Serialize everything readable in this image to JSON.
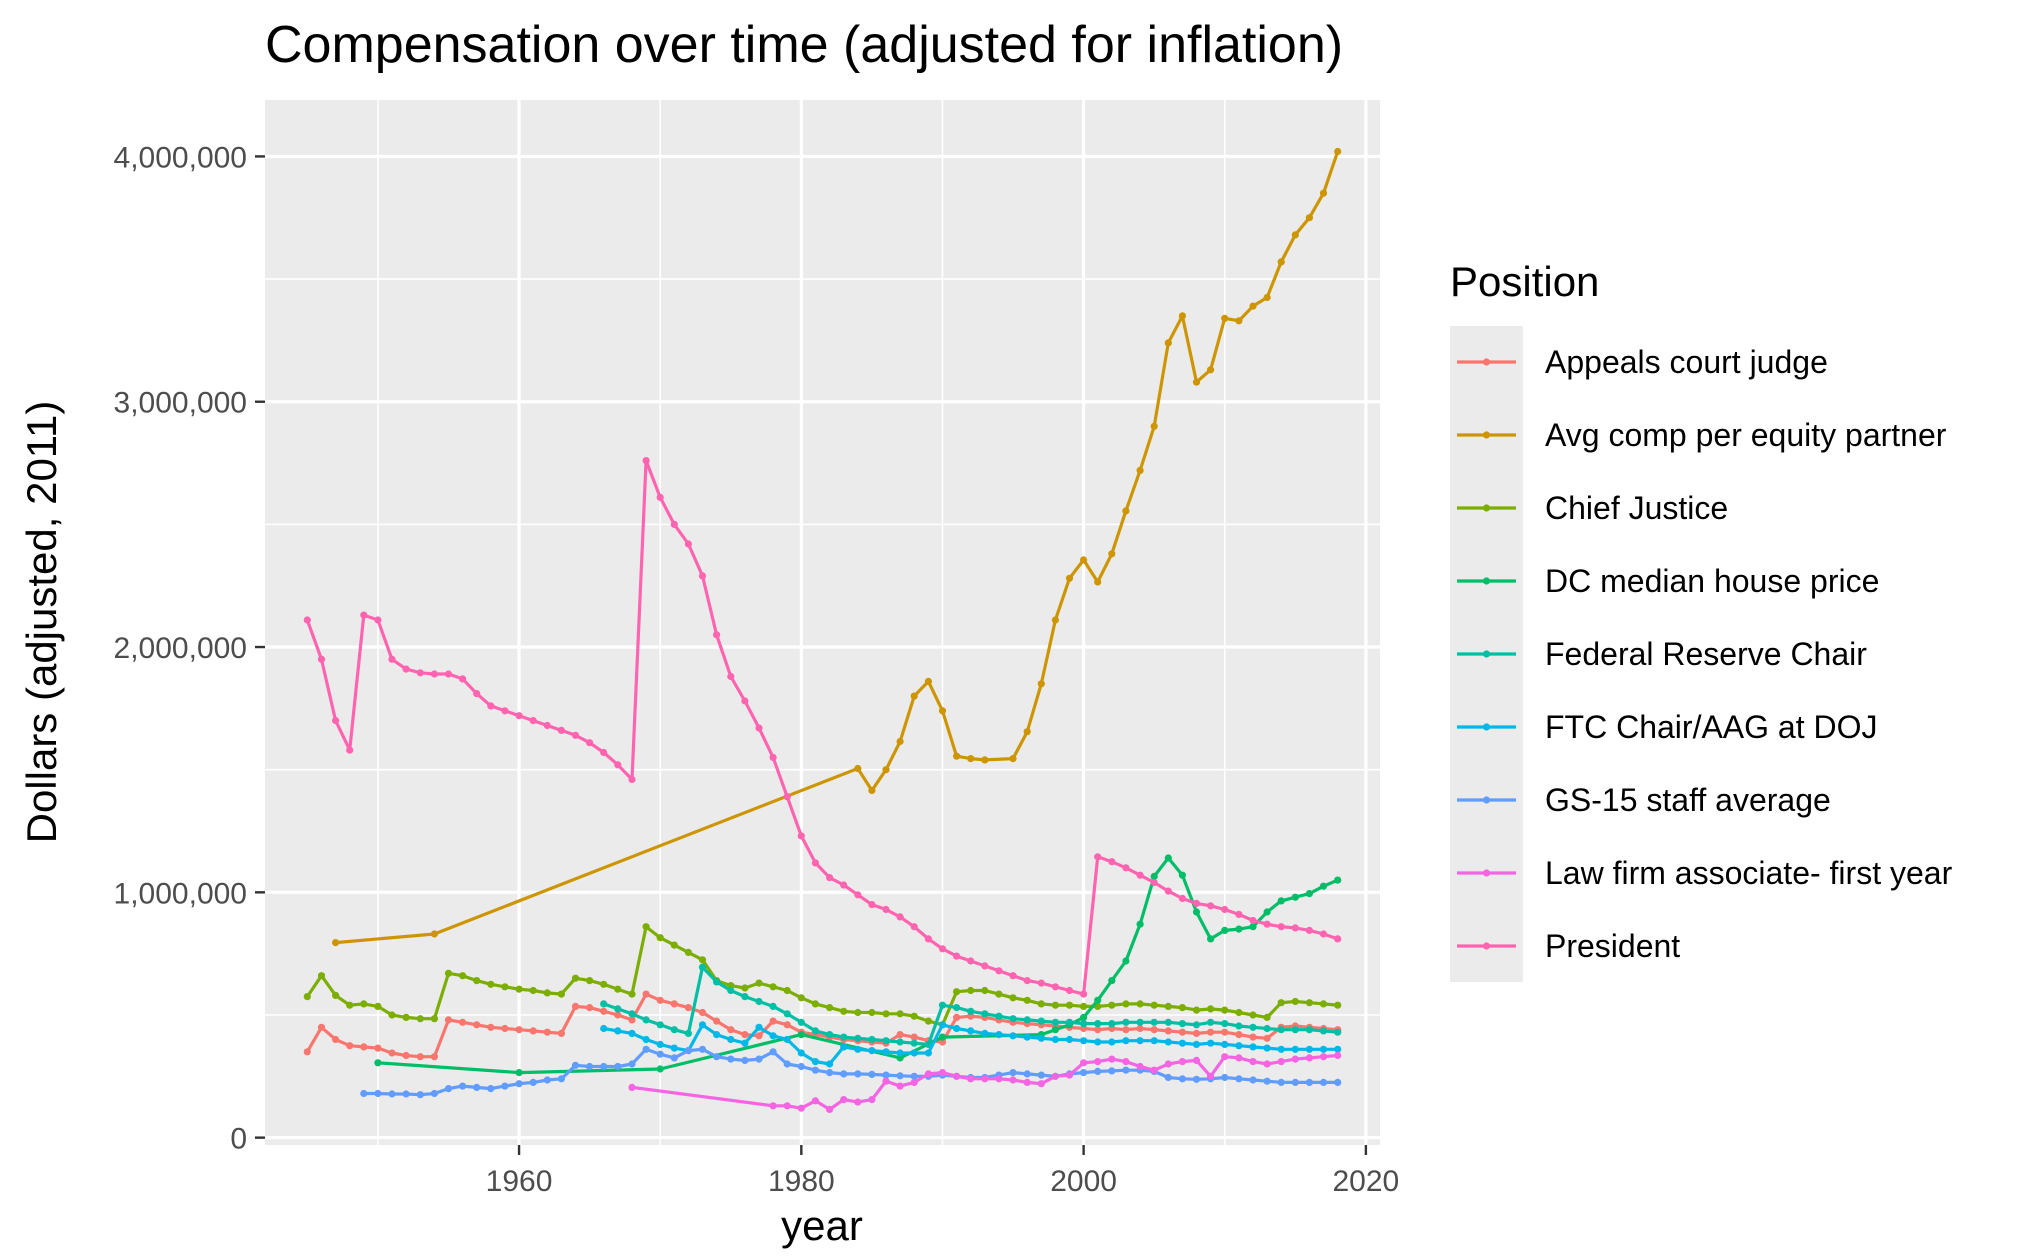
{
  "chart_data": {
    "type": "line",
    "title": "Compensation over time (adjusted for inflation)",
    "xlabel": "year",
    "ylabel": "Dollars (adjusted, 2011)",
    "xlim": [
      1942,
      2021
    ],
    "ylim": [
      -30000,
      4230000
    ],
    "x_ticks": [
      1960,
      1980,
      2000,
      2020
    ],
    "x_tick_labels": [
      "1960",
      "1980",
      "2000",
      "2020"
    ],
    "y_ticks": [
      0,
      1000000,
      2000000,
      3000000,
      4000000
    ],
    "y_tick_labels": [
      "0",
      "1,000,000",
      "2,000,000",
      "3,000,000",
      "4,000,000"
    ],
    "grid": true,
    "panel_background": "#ebebeb",
    "grid_color": "#ffffff",
    "legend": {
      "title": "Position",
      "position": "right"
    },
    "series": [
      {
        "name": "Appeals court judge",
        "color": "#F8766D",
        "x": [
          1945,
          1946,
          1947,
          1948,
          1949,
          1950,
          1951,
          1952,
          1953,
          1954,
          1955,
          1956,
          1957,
          1958,
          1959,
          1960,
          1961,
          1962,
          1963,
          1964,
          1965,
          1966,
          1967,
          1968,
          1969,
          1970,
          1971,
          1972,
          1973,
          1974,
          1975,
          1976,
          1977,
          1978,
          1979,
          1980,
          1981,
          1982,
          1983,
          1984,
          1985,
          1986,
          1987,
          1988,
          1989,
          1990,
          1991,
          1992,
          1993,
          1994,
          1995,
          1996,
          1997,
          1998,
          1999,
          2000,
          2001,
          2002,
          2003,
          2004,
          2005,
          2006,
          2007,
          2008,
          2009,
          2010,
          2011,
          2012,
          2013,
          2014,
          2015,
          2016,
          2017,
          2018
        ],
        "y": [
          350000,
          450000,
          400000,
          375000,
          370000,
          365000,
          345000,
          335000,
          330000,
          330000,
          480000,
          470000,
          460000,
          450000,
          445000,
          440000,
          435000,
          430000,
          425000,
          535000,
          530000,
          515000,
          500000,
          480000,
          585000,
          560000,
          545000,
          530000,
          510000,
          475000,
          440000,
          420000,
          415000,
          475000,
          460000,
          430000,
          420000,
          410000,
          400000,
          395000,
          390000,
          385000,
          420000,
          410000,
          395000,
          390000,
          490000,
          495000,
          490000,
          480000,
          470000,
          465000,
          460000,
          455000,
          450000,
          445000,
          440000,
          445000,
          440000,
          445000,
          440000,
          435000,
          430000,
          425000,
          430000,
          430000,
          420000,
          410000,
          405000,
          450000,
          455000,
          450000,
          445000,
          440000
        ]
      },
      {
        "name": "Avg comp per equity partner",
        "color": "#CD9600",
        "x": [
          1947,
          1954,
          1984,
          1985,
          1986,
          1987,
          1988,
          1989,
          1990,
          1991,
          1992,
          1993,
          1995,
          1996,
          1997,
          1998,
          1999,
          2000,
          2001,
          2002,
          2003,
          2004,
          2005,
          2006,
          2007,
          2008,
          2009,
          2010,
          2011,
          2012,
          2013,
          2014,
          2015,
          2016,
          2017,
          2018
        ],
        "y": [
          795000,
          830000,
          1505000,
          1415000,
          1500000,
          1615000,
          1800000,
          1860000,
          1740000,
          1555000,
          1545000,
          1540000,
          1545000,
          1655000,
          1850000,
          2110000,
          2280000,
          2355000,
          2265000,
          2380000,
          2555000,
          2720000,
          2900000,
          3240000,
          3350000,
          3080000,
          3130000,
          3340000,
          3330000,
          3390000,
          3425000,
          3570000,
          3680000,
          3750000,
          3850000,
          4020000
        ]
      },
      {
        "name": "Chief Justice",
        "color": "#7CAE00",
        "x": [
          1945,
          1946,
          1947,
          1948,
          1949,
          1950,
          1951,
          1952,
          1953,
          1954,
          1955,
          1956,
          1957,
          1958,
          1959,
          1960,
          1961,
          1962,
          1963,
          1964,
          1965,
          1966,
          1967,
          1968,
          1969,
          1970,
          1971,
          1972,
          1973,
          1974,
          1975,
          1976,
          1977,
          1978,
          1979,
          1980,
          1981,
          1982,
          1983,
          1984,
          1985,
          1986,
          1987,
          1988,
          1989,
          1990,
          1991,
          1992,
          1993,
          1994,
          1995,
          1996,
          1997,
          1998,
          1999,
          2000,
          2001,
          2002,
          2003,
          2004,
          2005,
          2006,
          2007,
          2008,
          2009,
          2010,
          2011,
          2012,
          2013,
          2014,
          2015,
          2016,
          2017,
          2018
        ],
        "y": [
          575000,
          660000,
          580000,
          540000,
          545000,
          535000,
          500000,
          490000,
          485000,
          485000,
          670000,
          660000,
          640000,
          625000,
          615000,
          605000,
          600000,
          590000,
          585000,
          650000,
          640000,
          625000,
          605000,
          585000,
          860000,
          815000,
          785000,
          755000,
          725000,
          640000,
          620000,
          610000,
          630000,
          615000,
          600000,
          570000,
          545000,
          530000,
          515000,
          510000,
          510000,
          505000,
          505000,
          495000,
          475000,
          460000,
          595000,
          600000,
          600000,
          585000,
          570000,
          560000,
          545000,
          540000,
          540000,
          535000,
          535000,
          540000,
          545000,
          545000,
          540000,
          535000,
          530000,
          520000,
          525000,
          520000,
          510000,
          500000,
          490000,
          550000,
          555000,
          550000,
          545000,
          540000
        ]
      },
      {
        "name": "DC median house price",
        "color": "#00BE67",
        "x": [
          1950,
          1960,
          1970,
          1980,
          1987,
          1990,
          1997,
          1998,
          1999,
          2000,
          2001,
          2002,
          2003,
          2004,
          2005,
          2006,
          2007,
          2008,
          2009,
          2010,
          2011,
          2012,
          2013,
          2014,
          2015,
          2016,
          2017,
          2018
        ],
        "y": [
          305000,
          265000,
          280000,
          420000,
          325000,
          410000,
          420000,
          440000,
          460000,
          490000,
          560000,
          640000,
          720000,
          870000,
          1065000,
          1140000,
          1070000,
          920000,
          810000,
          845000,
          850000,
          860000,
          920000,
          965000,
          980000,
          995000,
          1025000,
          1050000
        ]
      },
      {
        "name": "Federal Reserve Chair",
        "color": "#00BFA5",
        "x": [
          1966,
          1967,
          1968,
          1969,
          1970,
          1971,
          1972,
          1973,
          1974,
          1975,
          1976,
          1977,
          1978,
          1979,
          1980,
          1981,
          1982,
          1983,
          1984,
          1985,
          1986,
          1987,
          1988,
          1989,
          1990,
          1991,
          1992,
          1993,
          1994,
          1995,
          1996,
          1997,
          1998,
          1999,
          2000,
          2001,
          2002,
          2003,
          2004,
          2005,
          2006,
          2007,
          2008,
          2009,
          2010,
          2011,
          2012,
          2013,
          2014,
          2015,
          2016,
          2017,
          2018
        ],
        "y": [
          545000,
          525000,
          505000,
          480000,
          460000,
          440000,
          425000,
          695000,
          635000,
          600000,
          575000,
          555000,
          535000,
          505000,
          470000,
          435000,
          420000,
          410000,
          405000,
          400000,
          395000,
          390000,
          385000,
          380000,
          540000,
          530000,
          515000,
          505000,
          495000,
          485000,
          480000,
          475000,
          470000,
          470000,
          465000,
          465000,
          465000,
          470000,
          470000,
          470000,
          470000,
          465000,
          460000,
          470000,
          465000,
          455000,
          450000,
          445000,
          440000,
          440000,
          440000,
          435000,
          430000
        ]
      },
      {
        "name": "FTC Chair/AAG at DOJ",
        "color": "#00B8E7",
        "x": [
          1966,
          1967,
          1968,
          1969,
          1970,
          1971,
          1972,
          1973,
          1974,
          1975,
          1976,
          1977,
          1978,
          1979,
          1980,
          1981,
          1982,
          1983,
          1984,
          1985,
          1986,
          1987,
          1988,
          1989,
          1990,
          1991,
          1992,
          1993,
          1994,
          1995,
          1996,
          1997,
          1998,
          1999,
          2000,
          2001,
          2002,
          2003,
          2004,
          2005,
          2006,
          2007,
          2008,
          2009,
          2010,
          2011,
          2012,
          2013,
          2014,
          2015,
          2016,
          2017,
          2018
        ],
        "y": [
          445000,
          435000,
          425000,
          400000,
          380000,
          365000,
          355000,
          460000,
          420000,
          400000,
          385000,
          450000,
          415000,
          400000,
          345000,
          310000,
          300000,
          370000,
          360000,
          355000,
          350000,
          345000,
          345000,
          345000,
          460000,
          445000,
          435000,
          425000,
          420000,
          415000,
          410000,
          405000,
          400000,
          400000,
          395000,
          390000,
          390000,
          395000,
          395000,
          395000,
          390000,
          385000,
          380000,
          385000,
          380000,
          375000,
          370000,
          365000,
          360000,
          360000,
          360000,
          360000,
          360000
        ]
      },
      {
        "name": "GS-15 staff average",
        "color": "#619CFF",
        "x": [
          1949,
          1950,
          1951,
          1952,
          1953,
          1954,
          1955,
          1956,
          1957,
          1958,
          1959,
          1960,
          1961,
          1962,
          1963,
          1964,
          1965,
          1966,
          1967,
          1968,
          1969,
          1970,
          1971,
          1972,
          1973,
          1974,
          1975,
          1976,
          1977,
          1978,
          1979,
          1980,
          1981,
          1982,
          1983,
          1984,
          1985,
          1986,
          1987,
          1988,
          1989,
          1990,
          1991,
          1992,
          1993,
          1994,
          1995,
          1996,
          1997,
          1998,
          1999,
          2000,
          2001,
          2002,
          2003,
          2004,
          2005,
          2006,
          2007,
          2008,
          2009,
          2010,
          2011,
          2012,
          2013,
          2014,
          2015,
          2016,
          2017,
          2018
        ],
        "y": [
          180000,
          180000,
          178000,
          178000,
          175000,
          180000,
          200000,
          210000,
          205000,
          200000,
          210000,
          220000,
          225000,
          235000,
          240000,
          295000,
          290000,
          290000,
          290000,
          300000,
          360000,
          340000,
          325000,
          355000,
          360000,
          330000,
          320000,
          315000,
          320000,
          350000,
          300000,
          290000,
          275000,
          265000,
          260000,
          260000,
          258000,
          255000,
          252000,
          250000,
          250000,
          255000,
          250000,
          245000,
          245000,
          255000,
          265000,
          260000,
          255000,
          250000,
          260000,
          265000,
          270000,
          272000,
          275000,
          275000,
          270000,
          245000,
          240000,
          238000,
          240000,
          245000,
          240000,
          235000,
          230000,
          225000,
          225000,
          225000,
          225000,
          225000
        ]
      },
      {
        "name": "Law firm associate- first year",
        "color": "#F564E3",
        "x": [
          1968,
          1978,
          1979,
          1980,
          1981,
          1982,
          1983,
          1984,
          1985,
          1986,
          1987,
          1988,
          1989,
          1990,
          1991,
          1992,
          1993,
          1994,
          1995,
          1996,
          1997,
          1998,
          1999,
          2000,
          2001,
          2002,
          2003,
          2004,
          2005,
          2006,
          2007,
          2008,
          2009,
          2010,
          2011,
          2012,
          2013,
          2014,
          2015,
          2016,
          2017,
          2018
        ],
        "y": [
          205000,
          130000,
          130000,
          120000,
          150000,
          115000,
          155000,
          145000,
          155000,
          230000,
          210000,
          225000,
          260000,
          265000,
          250000,
          240000,
          240000,
          240000,
          235000,
          225000,
          220000,
          250000,
          255000,
          305000,
          310000,
          320000,
          310000,
          290000,
          275000,
          300000,
          310000,
          315000,
          250000,
          330000,
          325000,
          310000,
          300000,
          310000,
          320000,
          325000,
          330000,
          335000
        ]
      },
      {
        "name": "President",
        "color": "#FF64B0",
        "x": [
          1945,
          1946,
          1947,
          1948,
          1949,
          1950,
          1951,
          1952,
          1953,
          1954,
          1955,
          1956,
          1957,
          1958,
          1959,
          1960,
          1961,
          1962,
          1963,
          1964,
          1965,
          1966,
          1967,
          1968,
          1969,
          1970,
          1971,
          1972,
          1973,
          1974,
          1975,
          1976,
          1977,
          1978,
          1979,
          1980,
          1981,
          1982,
          1983,
          1984,
          1985,
          1986,
          1987,
          1988,
          1989,
          1990,
          1991,
          1992,
          1993,
          1994,
          1995,
          1996,
          1997,
          1998,
          1999,
          2000,
          2001,
          2002,
          2003,
          2004,
          2005,
          2006,
          2007,
          2008,
          2009,
          2010,
          2011,
          2012,
          2013,
          2014,
          2015,
          2016,
          2017,
          2018
        ],
        "y": [
          2110000,
          1950000,
          1700000,
          1580000,
          2130000,
          2110000,
          1950000,
          1910000,
          1895000,
          1890000,
          1890000,
          1870000,
          1810000,
          1760000,
          1740000,
          1720000,
          1700000,
          1680000,
          1660000,
          1640000,
          1610000,
          1570000,
          1520000,
          1460000,
          2760000,
          2610000,
          2500000,
          2420000,
          2290000,
          2050000,
          1880000,
          1780000,
          1670000,
          1550000,
          1390000,
          1230000,
          1120000,
          1060000,
          1030000,
          990000,
          950000,
          930000,
          900000,
          860000,
          810000,
          770000,
          740000,
          720000,
          700000,
          680000,
          660000,
          640000,
          630000,
          615000,
          600000,
          585000,
          1145000,
          1125000,
          1100000,
          1070000,
          1040000,
          1005000,
          975000,
          955000,
          945000,
          930000,
          910000,
          885000,
          870000,
          860000,
          855000,
          845000,
          830000,
          810000
        ]
      }
    ]
  }
}
